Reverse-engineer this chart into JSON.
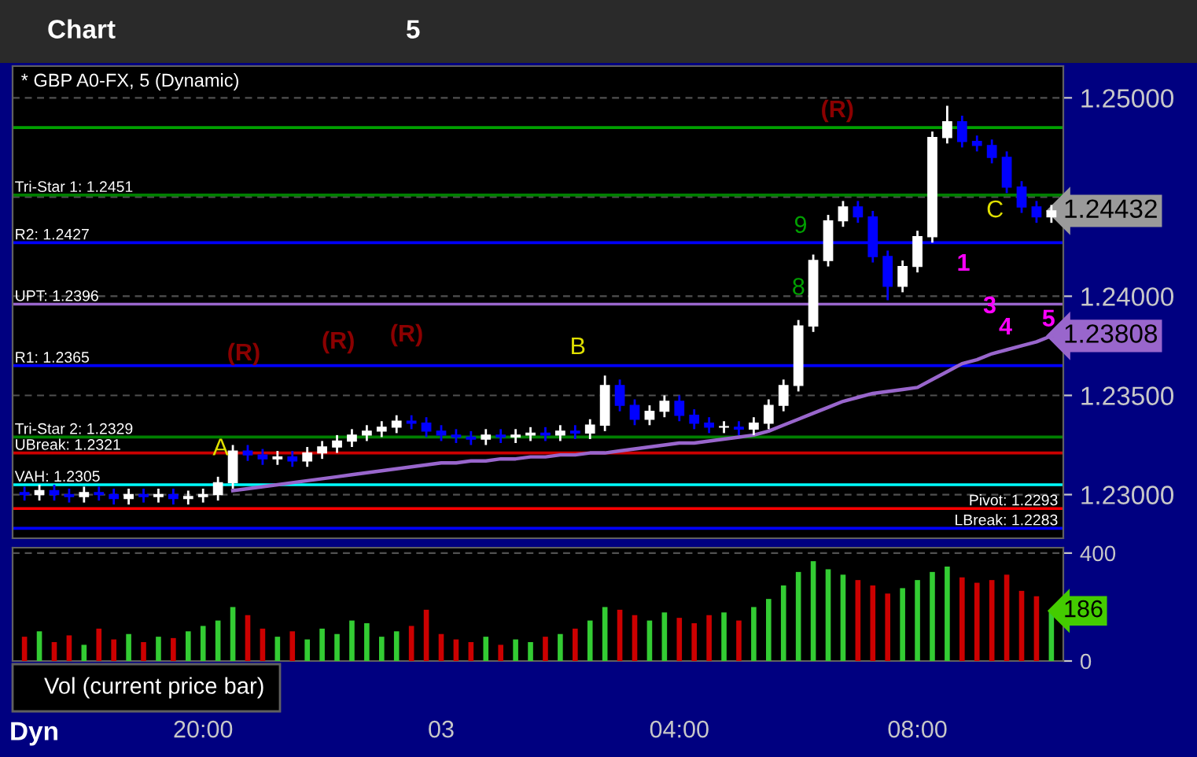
{
  "chart_data": [
    {
      "type": "candlestick",
      "title": "* GBP A0-FX, 5 (Dynamic)",
      "categories": [
        null,
        null,
        null,
        null,
        null,
        null,
        null,
        null,
        null,
        null,
        null,
        null,
        null,
        null,
        null,
        null,
        null,
        null,
        null,
        null,
        null,
        null,
        null,
        null,
        null,
        null,
        null,
        null,
        null,
        null,
        null,
        null,
        null,
        null,
        null,
        null,
        null,
        null,
        null,
        null,
        null,
        null,
        null,
        null,
        null,
        null,
        null,
        null,
        null,
        null,
        null,
        null,
        null,
        null,
        null,
        null,
        null,
        null,
        null,
        null,
        null,
        null,
        null,
        null,
        null,
        null,
        null,
        null,
        null,
        null
      ],
      "ohlc": [
        [
          1.2301,
          1.2304,
          1.2297,
          1.23
        ],
        [
          1.23,
          1.2305,
          1.2297,
          1.2302
        ],
        [
          1.2302,
          1.2305,
          1.2297,
          1.23
        ],
        [
          1.23,
          1.2303,
          1.2296,
          1.2299
        ],
        [
          1.2299,
          1.2304,
          1.2296,
          1.2301
        ],
        [
          1.2301,
          1.2304,
          1.2297,
          1.23
        ],
        [
          1.23,
          1.2303,
          1.2295,
          1.2298
        ],
        [
          1.2298,
          1.2303,
          1.2295,
          1.23
        ],
        [
          1.23,
          1.2303,
          1.2296,
          1.2299
        ],
        [
          1.2299,
          1.2303,
          1.2296,
          1.23
        ],
        [
          1.23,
          1.2303,
          1.2295,
          1.2298
        ],
        [
          1.2298,
          1.2302,
          1.2295,
          1.2299
        ],
        [
          1.2299,
          1.2303,
          1.2296,
          1.23
        ],
        [
          1.23,
          1.2309,
          1.2297,
          1.2306
        ],
        [
          1.2306,
          1.2325,
          1.2303,
          1.2322
        ],
        [
          1.2322,
          1.2325,
          1.2317,
          1.232
        ],
        [
          1.232,
          1.2323,
          1.2315,
          1.2318
        ],
        [
          1.2318,
          1.2322,
          1.2315,
          1.2319
        ],
        [
          1.2319,
          1.2322,
          1.2314,
          1.2317
        ],
        [
          1.2317,
          1.2324,
          1.2314,
          1.2321
        ],
        [
          1.2321,
          1.2327,
          1.2318,
          1.2324
        ],
        [
          1.2324,
          1.233,
          1.2321,
          1.2327
        ],
        [
          1.2327,
          1.2333,
          1.2324,
          1.233
        ],
        [
          1.233,
          1.2335,
          1.2327,
          1.2332
        ],
        [
          1.2332,
          1.2337,
          1.2329,
          1.2334
        ],
        [
          1.2334,
          1.234,
          1.2331,
          1.2337
        ],
        [
          1.2337,
          1.234,
          1.2333,
          1.2336
        ],
        [
          1.2336,
          1.2339,
          1.2329,
          1.2332
        ],
        [
          1.2332,
          1.2335,
          1.2327,
          1.233
        ],
        [
          1.233,
          1.2333,
          1.2326,
          1.2329
        ],
        [
          1.2329,
          1.2332,
          1.2325,
          1.2328
        ],
        [
          1.2328,
          1.2333,
          1.2325,
          1.233
        ],
        [
          1.233,
          1.2333,
          1.2326,
          1.2329
        ],
        [
          1.2329,
          1.2333,
          1.2326,
          1.233
        ],
        [
          1.233,
          1.2334,
          1.2327,
          1.2331
        ],
        [
          1.2331,
          1.2334,
          1.2327,
          1.233
        ],
        [
          1.233,
          1.2335,
          1.2327,
          1.2332
        ],
        [
          1.2332,
          1.2335,
          1.2328,
          1.2331
        ],
        [
          1.2331,
          1.2338,
          1.2328,
          1.2335
        ],
        [
          1.2335,
          1.236,
          1.2332,
          1.2355
        ],
        [
          1.2355,
          1.2358,
          1.2342,
          1.2345
        ],
        [
          1.2345,
          1.2348,
          1.2335,
          1.2338
        ],
        [
          1.2338,
          1.2345,
          1.2335,
          1.2342
        ],
        [
          1.2342,
          1.235,
          1.2339,
          1.2347
        ],
        [
          1.2347,
          1.235,
          1.2337,
          1.234
        ],
        [
          1.234,
          1.2343,
          1.2333,
          1.2336
        ],
        [
          1.2336,
          1.2339,
          1.2331,
          1.2334
        ],
        [
          1.2334,
          1.2337,
          1.2331,
          1.2334
        ],
        [
          1.2334,
          1.2337,
          1.233,
          1.2333
        ],
        [
          1.2333,
          1.2339,
          1.233,
          1.2336
        ],
        [
          1.2336,
          1.2348,
          1.2333,
          1.2345
        ],
        [
          1.2345,
          1.2358,
          1.2342,
          1.2355
        ],
        [
          1.2355,
          1.2388,
          1.2352,
          1.2385
        ],
        [
          1.2385,
          1.2421,
          1.2382,
          1.2418
        ],
        [
          1.2418,
          1.2441,
          1.2415,
          1.2438
        ],
        [
          1.2438,
          1.2448,
          1.2435,
          1.2445
        ],
        [
          1.2445,
          1.2448,
          1.2437,
          1.244
        ],
        [
          1.244,
          1.2443,
          1.2417,
          1.242
        ],
        [
          1.242,
          1.2423,
          1.2398,
          1.2405
        ],
        [
          1.2405,
          1.2418,
          1.2402,
          1.2415
        ],
        [
          1.2415,
          1.2433,
          1.2412,
          1.243
        ],
        [
          1.243,
          1.2483,
          1.2427,
          1.248
        ],
        [
          1.248,
          1.2496,
          1.2477,
          1.2488
        ],
        [
          1.2488,
          1.2491,
          1.2475,
          1.2478
        ],
        [
          1.2478,
          1.2481,
          1.2473,
          1.2476
        ],
        [
          1.2476,
          1.2479,
          1.2467,
          1.247
        ],
        [
          1.247,
          1.2473,
          1.2452,
          1.2455
        ],
        [
          1.2455,
          1.2458,
          1.2442,
          1.2445
        ],
        [
          1.2445,
          1.2448,
          1.2437,
          1.244
        ],
        [
          1.244,
          1.2446,
          1.2437,
          1.2443
        ]
      ],
      "colors": [
        "#0000ff",
        "#ffffff",
        "#0000ff",
        "#0000ff",
        "#ffffff",
        "#0000ff",
        "#0000ff",
        "#ffffff",
        "#0000ff",
        "#ffffff",
        "#0000ff",
        "#ffffff",
        "#ffffff",
        "#ffffff",
        "#ffffff",
        "#0000ff",
        "#0000ff",
        "#ffffff",
        "#0000ff",
        "#ffffff",
        "#ffffff",
        "#ffffff",
        "#ffffff",
        "#ffffff",
        "#ffffff",
        "#ffffff",
        "#0000ff",
        "#0000ff",
        "#0000ff",
        "#0000ff",
        "#0000ff",
        "#ffffff",
        "#0000ff",
        "#ffffff",
        "#ffffff",
        "#0000ff",
        "#ffffff",
        "#0000ff",
        "#ffffff",
        "#ffffff",
        "#0000ff",
        "#0000ff",
        "#ffffff",
        "#ffffff",
        "#0000ff",
        "#0000ff",
        "#0000ff",
        "#ffffff",
        "#0000ff",
        "#ffffff",
        "#ffffff",
        "#ffffff",
        "#ffffff",
        "#ffffff",
        "#ffffff",
        "#ffffff",
        "#0000ff",
        "#0000ff",
        "#0000ff",
        "#ffffff",
        "#ffffff",
        "#ffffff",
        "#ffffff",
        "#0000ff",
        "#0000ff",
        "#0000ff",
        "#0000ff",
        "#0000ff",
        "#0000ff",
        "#ffffff"
      ],
      "series": [
        {
          "type": "line",
          "color": "#9966cc",
          "values": [
            null,
            null,
            null,
            null,
            null,
            null,
            null,
            null,
            null,
            null,
            null,
            null,
            null,
            null,
            1.2302,
            1.2303,
            1.2304,
            1.2305,
            1.2306,
            1.2307,
            1.2308,
            1.2309,
            1.231,
            1.2311,
            1.2312,
            1.2313,
            1.2314,
            1.2315,
            1.2316,
            1.2316,
            1.2317,
            1.2317,
            1.2318,
            1.2318,
            1.2319,
            1.2319,
            1.232,
            1.232,
            1.2321,
            1.2321,
            1.2322,
            1.2323,
            1.2324,
            1.2325,
            1.2326,
            1.2326,
            1.2327,
            1.2328,
            1.2329,
            1.233,
            1.2332,
            1.2335,
            1.2338,
            1.2341,
            1.2344,
            1.2347,
            1.2349,
            1.2351,
            1.2352,
            1.2353,
            1.2354,
            1.2358,
            1.2362,
            1.2366,
            1.2368,
            1.2371,
            1.2373,
            1.2375,
            1.2377,
            1.238
          ]
        }
      ],
      "ylim": [
        1.2278,
        1.2516
      ],
      "yticks": [
        {
          "value": 1.23,
          "label": "1.23000"
        },
        {
          "value": 1.235,
          "label": "1.23500"
        },
        {
          "value": 1.24,
          "label": "1.24000"
        },
        {
          "value": 1.245,
          "label": null
        },
        {
          "value": 1.25,
          "label": "1.25000"
        }
      ],
      "grid": "y",
      "tick_labels": "y",
      "ref_lines": [
        {
          "axis": "y",
          "value": 1.2485,
          "color": "#00a000"
        },
        {
          "axis": "y",
          "value": 1.2451,
          "label": "Tri-Star 1: 1.2451",
          "color": "#007f00"
        },
        {
          "axis": "y",
          "value": 1.2427,
          "label": "R2: 1.2427",
          "color": "#0000ff"
        },
        {
          "axis": "y",
          "value": 1.2396,
          "label": "UPT: 1.2396",
          "color": "#9966cc"
        },
        {
          "axis": "y",
          "value": 1.2365,
          "label": "R1: 1.2365",
          "color": "#0000ff"
        },
        {
          "axis": "y",
          "value": 1.2329,
          "label": "Tri-Star 2: 1.2329",
          "color": "#007f00"
        },
        {
          "axis": "y",
          "value": 1.2321,
          "label": "UBreak: 1.2321",
          "color": "#cc0000"
        },
        {
          "axis": "y",
          "value": 1.2305,
          "label": "VAH: 1.2305",
          "color": "#00ffff"
        },
        {
          "axis": "y",
          "value": 1.2293,
          "label": "Pivot: 1.2293",
          "color": "#ff0000"
        },
        {
          "axis": "y",
          "value": 1.2283,
          "label": "LBreak: 1.2283",
          "color": "#0000ff"
        }
      ],
      "annotations": [
        "Chart",
        "5",
        "(R)",
        "(R)",
        "(R)",
        "(R)",
        "9",
        "1",
        "3",
        "4",
        "A",
        "B",
        "C",
        "8",
        "5",
        "1.24432",
        "1.23808"
      ]
    },
    {
      "type": "bar",
      "title": "Vol (current price bar)",
      "categories": [
        null,
        null,
        null,
        null,
        null,
        null,
        null,
        null,
        null,
        null,
        null,
        null,
        "20:00",
        null,
        null,
        null,
        null,
        null,
        null,
        null,
        null,
        null,
        null,
        null,
        null,
        null,
        null,
        null,
        "03",
        null,
        null,
        null,
        null,
        null,
        null,
        null,
        null,
        null,
        null,
        null,
        null,
        null,
        null,
        null,
        "04:00",
        null,
        null,
        null,
        null,
        null,
        null,
        null,
        null,
        null,
        null,
        null,
        null,
        null,
        null,
        null,
        "08:00",
        null,
        null,
        null,
        null,
        null,
        null,
        null,
        null,
        null
      ],
      "values": [
        90,
        110,
        70,
        95,
        60,
        120,
        80,
        100,
        70,
        90,
        85,
        110,
        130,
        150,
        200,
        170,
        120,
        90,
        110,
        80,
        120,
        100,
        150,
        140,
        90,
        110,
        130,
        190,
        100,
        80,
        70,
        90,
        60,
        80,
        70,
        90,
        100,
        120,
        150,
        200,
        190,
        170,
        150,
        180,
        160,
        140,
        170,
        180,
        150,
        200,
        230,
        280,
        330,
        370,
        340,
        320,
        300,
        280,
        250,
        270,
        300,
        330,
        350,
        310,
        290,
        300,
        320,
        260,
        240,
        186
      ],
      "colors": [
        "#cc0000",
        "#33cc33",
        "#cc0000",
        "#cc0000",
        "#33cc33",
        "#cc0000",
        "#cc0000",
        "#33cc33",
        "#cc0000",
        "#33cc33",
        "#cc0000",
        "#33cc33",
        "#33cc33",
        "#33cc33",
        "#33cc33",
        "#cc0000",
        "#cc0000",
        "#33cc33",
        "#cc0000",
        "#33cc33",
        "#33cc33",
        "#33cc33",
        "#33cc33",
        "#33cc33",
        "#33cc33",
        "#33cc33",
        "#cc0000",
        "#cc0000",
        "#cc0000",
        "#cc0000",
        "#cc0000",
        "#33cc33",
        "#cc0000",
        "#33cc33",
        "#33cc33",
        "#cc0000",
        "#33cc33",
        "#cc0000",
        "#33cc33",
        "#33cc33",
        "#cc0000",
        "#cc0000",
        "#33cc33",
        "#33cc33",
        "#cc0000",
        "#cc0000",
        "#cc0000",
        "#33cc33",
        "#cc0000",
        "#33cc33",
        "#33cc33",
        "#33cc33",
        "#33cc33",
        "#33cc33",
        "#33cc33",
        "#33cc33",
        "#cc0000",
        "#cc0000",
        "#cc0000",
        "#33cc33",
        "#33cc33",
        "#33cc33",
        "#33cc33",
        "#cc0000",
        "#cc0000",
        "#cc0000",
        "#cc0000",
        "#cc0000",
        "#cc0000",
        "#33cc33"
      ],
      "ylim": [
        0,
        420
      ],
      "yticks": [
        0,
        400
      ],
      "grid": "y",
      "annotations": [
        "Dyn",
        "186"
      ]
    }
  ]
}
